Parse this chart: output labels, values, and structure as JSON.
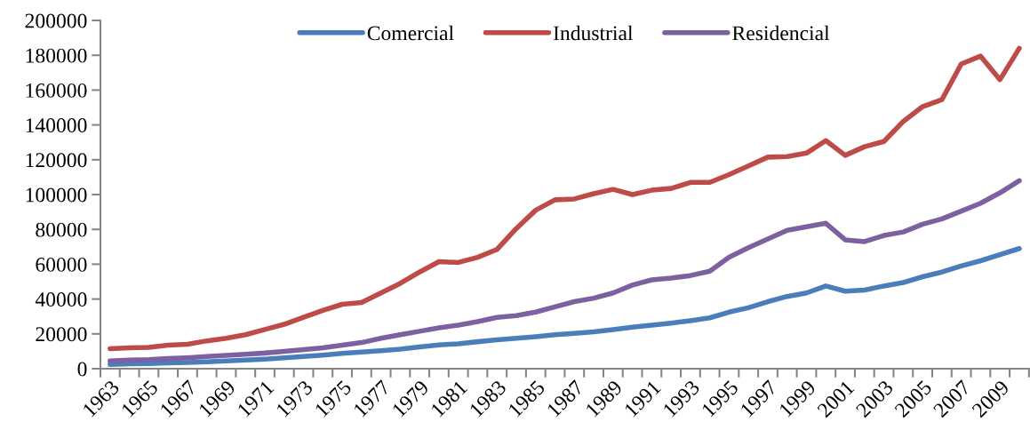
{
  "chart_data": {
    "type": "line",
    "categories": [
      "1963",
      null,
      "1965",
      null,
      "1967",
      null,
      "1969",
      null,
      "1971",
      null,
      "1973",
      null,
      "1975",
      null,
      "1977",
      null,
      "1979",
      null,
      "1981",
      null,
      "1983",
      null,
      "1985",
      null,
      "1987",
      null,
      "1989",
      null,
      "1991",
      null,
      "1993",
      null,
      "1995",
      null,
      "1997",
      null,
      "1999",
      null,
      "2001",
      null,
      "2003",
      null,
      "2005",
      null,
      "2007",
      null,
      "2009",
      null
    ],
    "series": [
      {
        "name": "Comercial",
        "color": "#4a7ebb",
        "values": [
          2500,
          2800,
          3000,
          3300,
          3600,
          4000,
          4500,
          5000,
          5500,
          6200,
          7000,
          7800,
          8800,
          9600,
          10300,
          11200,
          12500,
          13600,
          14300,
          15500,
          16600,
          17500,
          18400,
          19500,
          20300,
          21200,
          22400,
          23800,
          25000,
          26200,
          27600,
          29200,
          32500,
          35000,
          38500,
          41500,
          43500,
          47500,
          44500,
          45200,
          47500,
          49500,
          52800,
          55500,
          59000,
          62000,
          65500,
          69000
        ]
      },
      {
        "name": "Industrial",
        "color": "#be4b48",
        "values": [
          11500,
          12000,
          12200,
          13500,
          14000,
          16000,
          17500,
          19500,
          22500,
          25500,
          29500,
          33500,
          37000,
          38000,
          43500,
          49000,
          55500,
          61500,
          61000,
          64000,
          68500,
          80500,
          91000,
          97000,
          97500,
          100500,
          103000,
          100000,
          102500,
          103500,
          107000,
          107000,
          111500,
          116500,
          121500,
          121800,
          123800,
          131000,
          122500,
          127500,
          130500,
          142000,
          150500,
          154500,
          175000,
          179500,
          166000,
          184000
        ]
      },
      {
        "name": "Residencial",
        "color": "#7d60a0",
        "values": [
          4500,
          5000,
          5200,
          5800,
          6300,
          7000,
          7700,
          8300,
          9000,
          10000,
          11000,
          12000,
          13500,
          15000,
          17500,
          19500,
          21500,
          23500,
          25000,
          27000,
          29500,
          30500,
          32500,
          35500,
          38500,
          40500,
          43500,
          48000,
          51000,
          52000,
          53500,
          56000,
          64000,
          69500,
          74500,
          79500,
          81500,
          83500,
          74000,
          73000,
          76500,
          78500,
          83000,
          86000,
          90500,
          95000,
          101000,
          108000
        ]
      }
    ],
    "ylim": [
      0,
      200000
    ],
    "yticks": [
      0,
      20000,
      40000,
      60000,
      80000,
      100000,
      120000,
      140000,
      160000,
      180000,
      200000
    ],
    "grid": false,
    "legend": "top",
    "marker": "none",
    "line_style": "solid"
  }
}
